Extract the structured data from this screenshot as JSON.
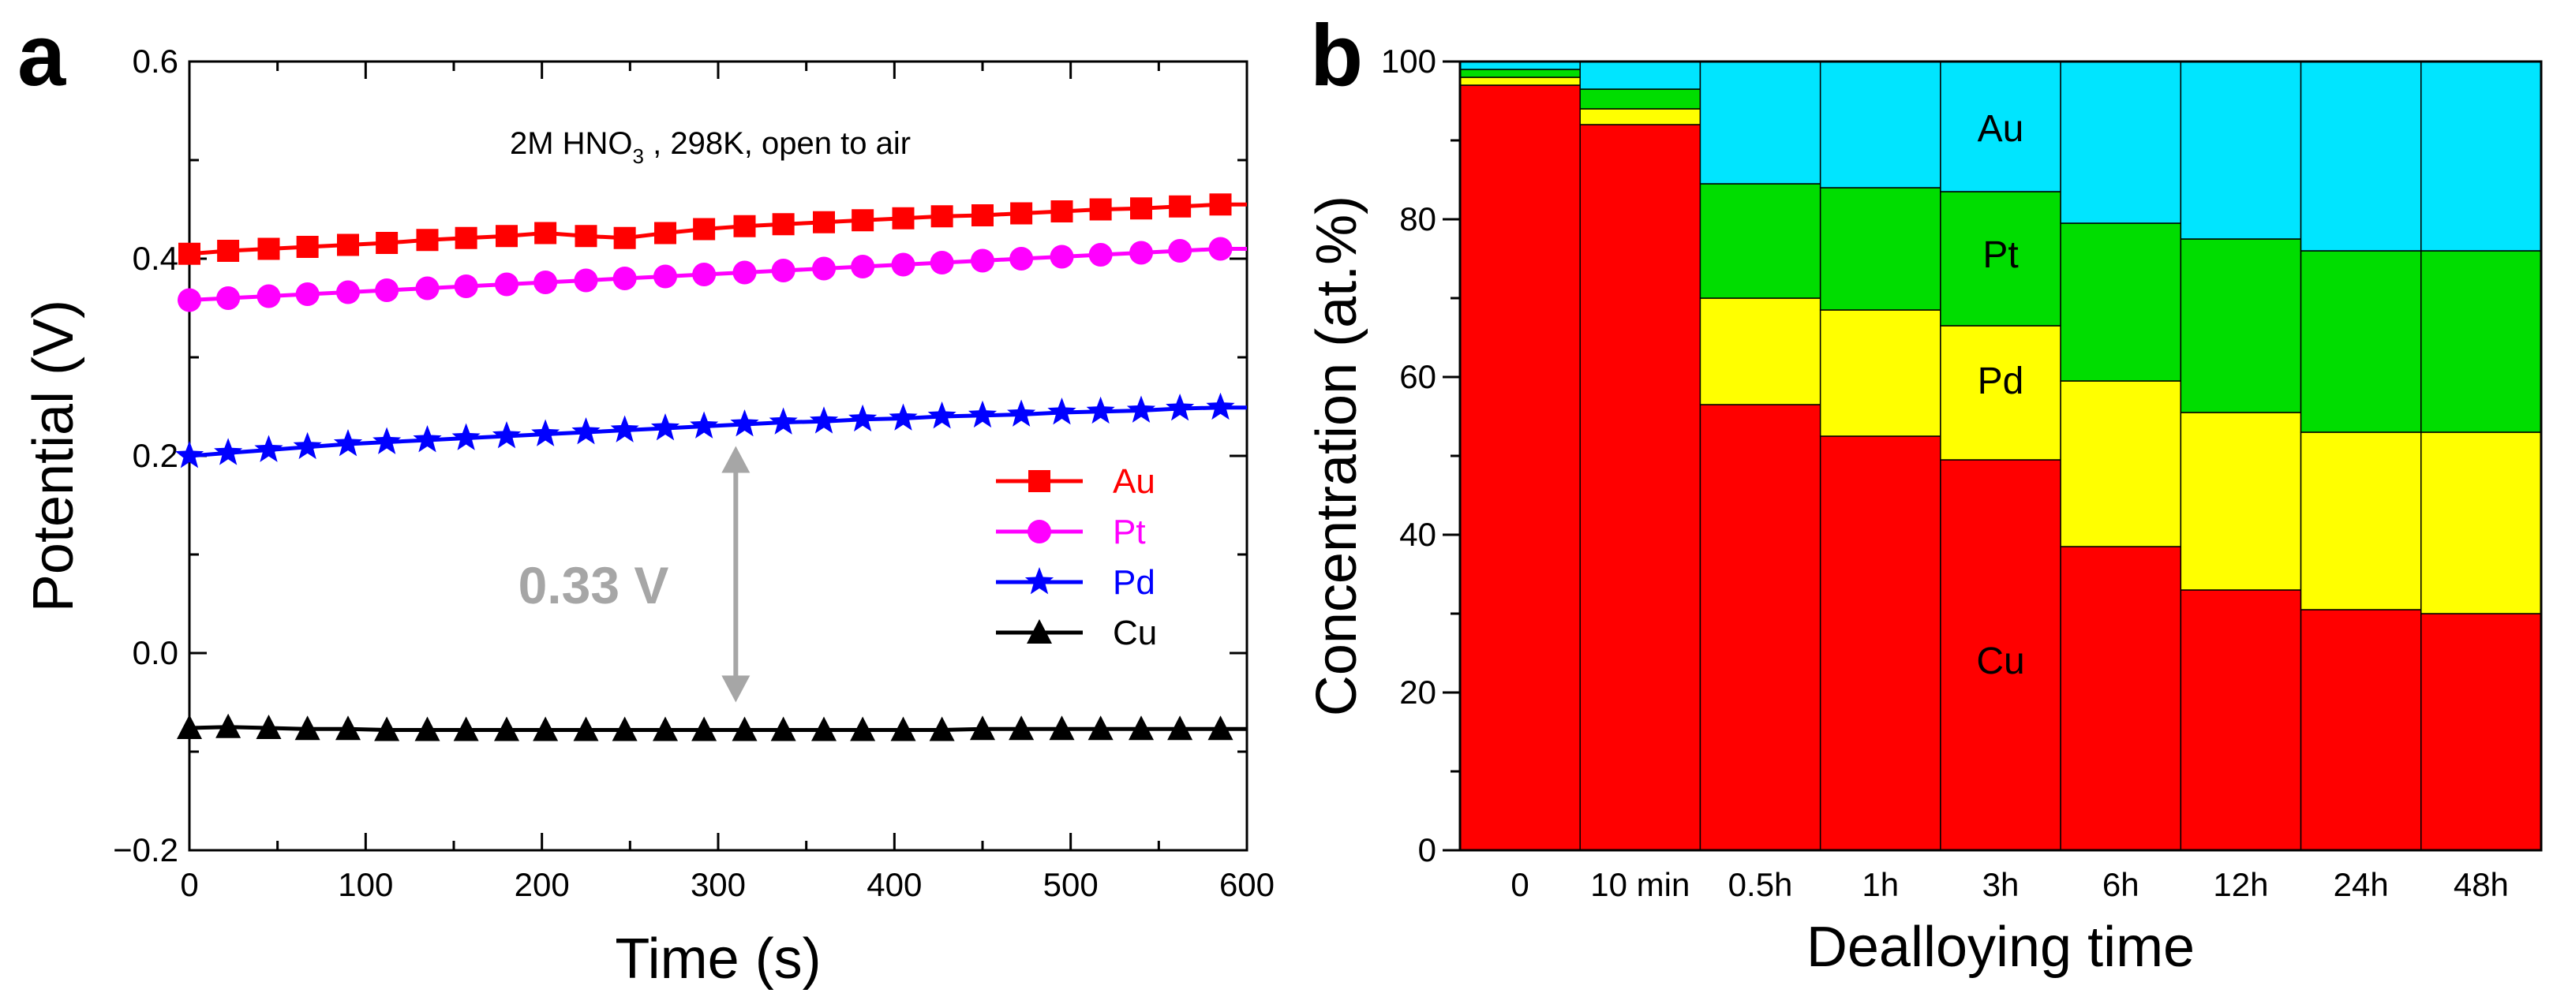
{
  "chart_data": [
    {
      "panel": "a",
      "type": "line",
      "annotation": {
        "text": "2M HNO",
        "sub": "3",
        "rest": " , 298K, open to air"
      },
      "gap_label": "0.33 V",
      "xlabel": "Time (s)",
      "ylabel": "Potential (V)",
      "xlim": [
        0,
        600
      ],
      "ylim": [
        -0.2,
        0.6
      ],
      "xticks": [
        "0",
        "100",
        "200",
        "300",
        "400",
        "500",
        "600"
      ],
      "yticks": [
        "−0.2",
        "0.0",
        "0.2",
        "0.4",
        "0.6"
      ],
      "gap": {
        "x": 310,
        "from": -0.05,
        "to": 0.21
      },
      "x": [
        0,
        22,
        45,
        67,
        90,
        112,
        135,
        157,
        180,
        202,
        225,
        247,
        270,
        292,
        315,
        337,
        360,
        382,
        405,
        427,
        450,
        472,
        495,
        517,
        540,
        562,
        585
      ],
      "series": [
        {
          "name": "Au",
          "color": "#ff0000",
          "marker": "square",
          "values": [
            0.405,
            0.408,
            0.41,
            0.412,
            0.414,
            0.416,
            0.419,
            0.421,
            0.423,
            0.426,
            0.423,
            0.421,
            0.426,
            0.43,
            0.433,
            0.435,
            0.437,
            0.439,
            0.441,
            0.443,
            0.444,
            0.446,
            0.448,
            0.45,
            0.451,
            0.453,
            0.455
          ]
        },
        {
          "name": "Pt",
          "color": "#ff00ff",
          "marker": "circle",
          "values": [
            0.358,
            0.36,
            0.362,
            0.364,
            0.366,
            0.368,
            0.37,
            0.372,
            0.374,
            0.376,
            0.378,
            0.38,
            0.382,
            0.384,
            0.386,
            0.388,
            0.39,
            0.392,
            0.394,
            0.396,
            0.398,
            0.4,
            0.402,
            0.404,
            0.406,
            0.408,
            0.41
          ]
        },
        {
          "name": "Pd",
          "color": "#0000ff",
          "marker": "star",
          "values": [
            0.2,
            0.203,
            0.206,
            0.209,
            0.212,
            0.214,
            0.216,
            0.218,
            0.22,
            0.222,
            0.224,
            0.226,
            0.228,
            0.23,
            0.232,
            0.234,
            0.235,
            0.237,
            0.238,
            0.24,
            0.241,
            0.242,
            0.244,
            0.245,
            0.246,
            0.248,
            0.249
          ]
        },
        {
          "name": "Cu",
          "color": "#000000",
          "marker": "triangle",
          "values": [
            -0.076,
            -0.075,
            -0.076,
            -0.077,
            -0.077,
            -0.078,
            -0.078,
            -0.078,
            -0.078,
            -0.078,
            -0.078,
            -0.078,
            -0.078,
            -0.078,
            -0.078,
            -0.078,
            -0.078,
            -0.078,
            -0.078,
            -0.078,
            -0.077,
            -0.077,
            -0.077,
            -0.077,
            -0.077,
            -0.077,
            -0.077
          ]
        }
      ]
    },
    {
      "panel": "b",
      "type": "bar",
      "stacked": true,
      "xlabel": "Dealloying time",
      "ylabel": "Concentration (at.%)",
      "ylim": [
        0,
        100
      ],
      "yticks": [
        "0",
        "20",
        "40",
        "60",
        "80",
        "100"
      ],
      "categories": [
        "0",
        "10 min",
        "0.5h",
        "1h",
        "3h",
        "6h",
        "12h",
        "24h",
        "48h"
      ],
      "series": [
        {
          "name": "Cu",
          "color": "#ff0000",
          "values": [
            97.0,
            92.0,
            56.5,
            52.5,
            49.5,
            38.5,
            33.0,
            30.5,
            30.0
          ]
        },
        {
          "name": "Pd",
          "color": "#ffff00",
          "values": [
            1.0,
            2.0,
            13.5,
            16.0,
            17.0,
            21.0,
            22.5,
            22.5,
            23.0
          ]
        },
        {
          "name": "Pt",
          "color": "#00dd00",
          "values": [
            1.0,
            2.5,
            14.5,
            15.5,
            17.0,
            20.0,
            22.0,
            23.0,
            23.0
          ]
        },
        {
          "name": "Au",
          "color": "#00e5ff",
          "values": [
            1.0,
            3.5,
            15.5,
            16.0,
            16.5,
            20.5,
            22.5,
            24.0,
            24.0
          ]
        }
      ],
      "inline_labels": [
        {
          "series": "Au",
          "text": "Au",
          "category": 4,
          "value": 91.5
        },
        {
          "series": "Pt",
          "text": "Pt",
          "category": 4,
          "value": 75.5
        },
        {
          "series": "Pd",
          "text": "Pd",
          "category": 4,
          "value": 59.5
        },
        {
          "series": "Cu",
          "text": "Cu",
          "category": 4,
          "value": 24.0
        }
      ]
    }
  ],
  "panel_labels": {
    "a": "a",
    "b": "b"
  }
}
